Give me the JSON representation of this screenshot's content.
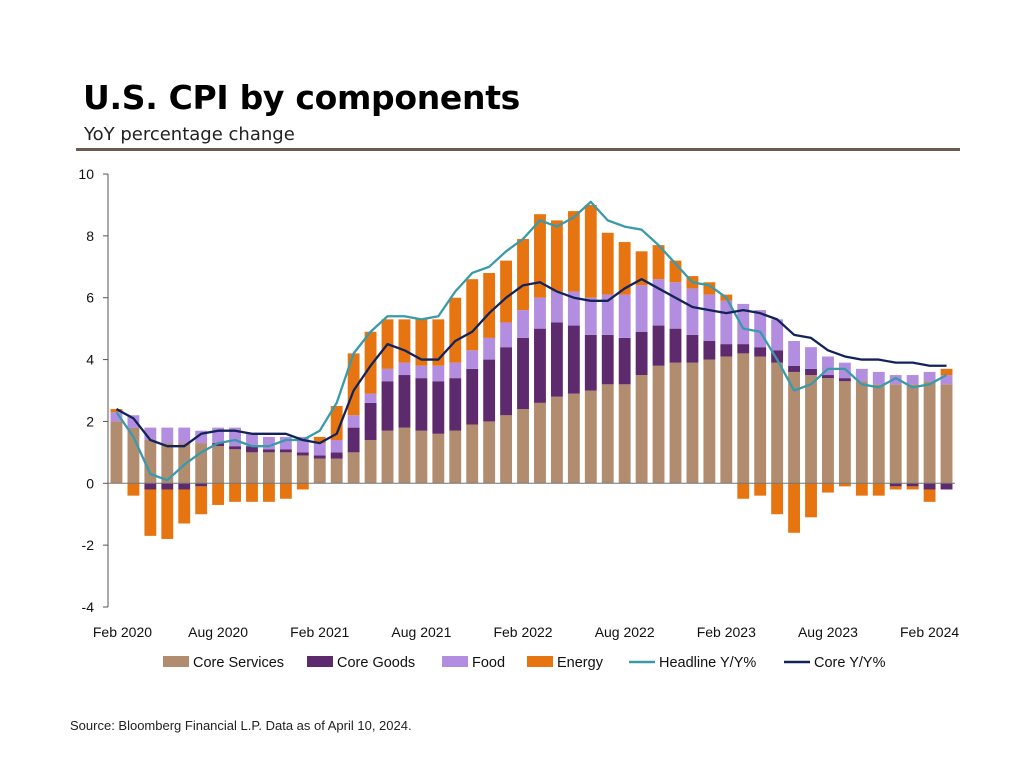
{
  "header": {
    "title": "U.S. CPI by components",
    "subtitle": "YoY percentage change"
  },
  "footer": {
    "source": "Source: Bloomberg Financial L.P. Data as of April 10, 2024."
  },
  "colors": {
    "core_services": "#b28c6e",
    "core_goods": "#5e2a6e",
    "food": "#b38ee0",
    "energy": "#e67511",
    "headline": "#3a9aaa",
    "core": "#13235a",
    "rule": "#6b5a4e"
  },
  "chart_data": {
    "type": "bar",
    "stacked": true,
    "ylim": [
      -4,
      10
    ],
    "yticks": [
      "10",
      "8",
      "6",
      "4",
      "2",
      "0",
      "-2",
      "-4"
    ],
    "xtick_labels": [
      "Feb 2020",
      "Aug 2020",
      "Feb 2021",
      "Aug 2021",
      "Feb 2022",
      "Aug 2022",
      "Feb 2023",
      "Aug 2023",
      "Feb 2024"
    ],
    "categories": [
      "Feb 2020",
      "Mar 2020",
      "Apr 2020",
      "May 2020",
      "Jun 2020",
      "Jul 2020",
      "Aug 2020",
      "Sep 2020",
      "Oct 2020",
      "Nov 2020",
      "Dec 2020",
      "Jan 2021",
      "Feb 2021",
      "Mar 2021",
      "Apr 2021",
      "May 2021",
      "Jun 2021",
      "Jul 2021",
      "Aug 2021",
      "Sep 2021",
      "Oct 2021",
      "Nov 2021",
      "Dec 2021",
      "Jan 2022",
      "Feb 2022",
      "Mar 2022",
      "Apr 2022",
      "May 2022",
      "Jun 2022",
      "Jul 2022",
      "Aug 2022",
      "Sep 2022",
      "Oct 2022",
      "Nov 2022",
      "Dec 2022",
      "Jan 2023",
      "Feb 2023",
      "Mar 2023",
      "Apr 2023",
      "May 2023",
      "Jun 2023",
      "Jul 2023",
      "Aug 2023",
      "Sep 2023",
      "Oct 2023",
      "Nov 2023",
      "Dec 2023",
      "Jan 2024",
      "Feb 2024",
      "Mar 2024"
    ],
    "series": [
      {
        "name": "Core Services",
        "kind": "bar",
        "color_key": "core_services",
        "values": [
          2.0,
          1.8,
          1.4,
          1.3,
          1.3,
          1.3,
          1.2,
          1.1,
          1.0,
          1.0,
          1.0,
          0.9,
          0.8,
          0.8,
          1.0,
          1.4,
          1.7,
          1.8,
          1.7,
          1.6,
          1.7,
          1.9,
          2.0,
          2.2,
          2.4,
          2.6,
          2.8,
          2.9,
          3.0,
          3.2,
          3.2,
          3.5,
          3.8,
          3.9,
          3.9,
          4.0,
          4.1,
          4.2,
          4.1,
          3.9,
          3.6,
          3.5,
          3.4,
          3.3,
          3.3,
          3.2,
          3.2,
          3.2,
          3.3,
          3.2
        ]
      },
      {
        "name": "Core Goods",
        "kind": "bar",
        "color_key": "core_goods",
        "values": [
          0.0,
          0.0,
          -0.2,
          -0.2,
          -0.2,
          -0.1,
          0.1,
          0.1,
          0.2,
          0.1,
          0.1,
          0.1,
          0.1,
          0.2,
          0.8,
          1.2,
          1.6,
          1.7,
          1.7,
          1.7,
          1.7,
          1.8,
          2.0,
          2.2,
          2.3,
          2.4,
          2.4,
          2.2,
          1.8,
          1.6,
          1.5,
          1.4,
          1.3,
          1.1,
          0.9,
          0.6,
          0.4,
          0.3,
          0.3,
          0.4,
          0.2,
          0.2,
          0.1,
          0.1,
          0.0,
          0.0,
          -0.1,
          -0.1,
          -0.2,
          -0.2
        ]
      },
      {
        "name": "Food",
        "kind": "bar",
        "color_key": "food",
        "values": [
          0.3,
          0.4,
          0.4,
          0.5,
          0.5,
          0.4,
          0.5,
          0.6,
          0.4,
          0.4,
          0.4,
          0.5,
          0.4,
          0.4,
          0.4,
          0.3,
          0.4,
          0.4,
          0.4,
          0.5,
          0.5,
          0.6,
          0.7,
          0.8,
          0.9,
          1.0,
          1.0,
          1.1,
          1.2,
          1.3,
          1.4,
          1.5,
          1.5,
          1.5,
          1.5,
          1.5,
          1.4,
          1.3,
          1.2,
          1.0,
          0.8,
          0.7,
          0.6,
          0.5,
          0.4,
          0.4,
          0.3,
          0.3,
          0.3,
          0.3
        ]
      },
      {
        "name": "Energy",
        "kind": "bar",
        "color_key": "energy",
        "values": [
          0.1,
          -0.4,
          -1.5,
          -1.6,
          -1.1,
          -0.9,
          -0.7,
          -0.6,
          -0.6,
          -0.6,
          -0.5,
          -0.2,
          0.2,
          1.1,
          2.0,
          2.0,
          1.6,
          1.4,
          1.5,
          1.5,
          2.1,
          2.3,
          2.1,
          2.0,
          2.3,
          2.7,
          2.3,
          2.6,
          3.0,
          2.0,
          1.7,
          1.1,
          1.1,
          0.7,
          0.4,
          0.4,
          0.2,
          -0.5,
          -0.4,
          -1.0,
          -1.6,
          -1.1,
          -0.3,
          -0.1,
          -0.4,
          -0.4,
          -0.1,
          -0.1,
          -0.4,
          0.2
        ]
      },
      {
        "name": "Headline Y/Y%",
        "kind": "line",
        "color_key": "headline",
        "values": [
          2.3,
          1.5,
          0.3,
          0.1,
          0.6,
          1.0,
          1.3,
          1.4,
          1.2,
          1.2,
          1.4,
          1.4,
          1.7,
          2.6,
          4.2,
          4.9,
          5.4,
          5.4,
          5.3,
          5.4,
          6.2,
          6.8,
          7.0,
          7.5,
          7.9,
          8.5,
          8.3,
          8.6,
          9.1,
          8.5,
          8.3,
          8.2,
          7.7,
          7.1,
          6.5,
          6.4,
          6.0,
          5.0,
          4.9,
          4.0,
          3.0,
          3.2,
          3.7,
          3.7,
          3.2,
          3.1,
          3.4,
          3.1,
          3.2,
          3.5
        ]
      },
      {
        "name": "Core Y/Y%",
        "kind": "line",
        "color_key": "core",
        "values": [
          2.4,
          2.1,
          1.4,
          1.2,
          1.2,
          1.6,
          1.7,
          1.7,
          1.6,
          1.6,
          1.6,
          1.4,
          1.3,
          1.6,
          3.0,
          3.8,
          4.5,
          4.3,
          4.0,
          4.0,
          4.6,
          4.9,
          5.5,
          6.0,
          6.4,
          6.5,
          6.2,
          6.0,
          5.9,
          5.9,
          6.3,
          6.6,
          6.3,
          6.0,
          5.7,
          5.6,
          5.5,
          5.6,
          5.5,
          5.3,
          4.8,
          4.7,
          4.3,
          4.1,
          4.0,
          4.0,
          3.9,
          3.9,
          3.8,
          3.8
        ]
      }
    ],
    "legend": [
      "Core Services",
      "Core Goods",
      "Food",
      "Energy",
      "Headline Y/Y%",
      "Core Y/Y%"
    ],
    "legend_position": "bottom"
  }
}
